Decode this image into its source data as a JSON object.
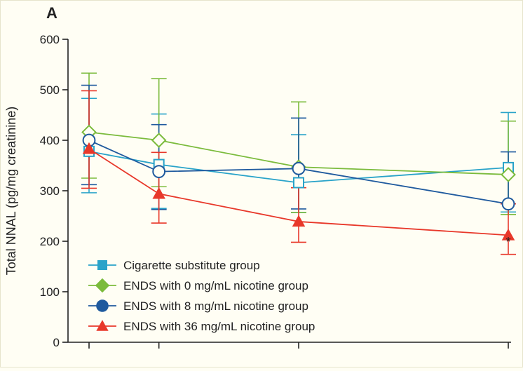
{
  "panel_label": "A",
  "chart_data": {
    "type": "line",
    "ylabel": "Total NNAL (pg/mg creatinine)",
    "xlabel": "",
    "ylim": [
      0,
      600
    ],
    "yticks": [
      0,
      100,
      200,
      300,
      400,
      500,
      600
    ],
    "x": [
      0,
      1,
      3,
      6
    ],
    "grid": false,
    "legend_position": "bottom-left",
    "annotations": [
      {
        "text": "*",
        "x": 6,
        "y": 190
      }
    ],
    "series": [
      {
        "name": "Cigarette substitute group",
        "color": "#29a3c9",
        "marker": "square-open",
        "values": [
          378,
          352,
          316,
          346
        ],
        "upper": [
          483,
          452,
          411,
          455
        ],
        "lower": [
          296,
          265,
          257,
          258
        ]
      },
      {
        "name": "ENDS with 0 mg/mL nicotine group",
        "color": "#7bbb3c",
        "marker": "diamond-open",
        "values": [
          416,
          400,
          347,
          332
        ],
        "upper": [
          533,
          522,
          476,
          438
        ],
        "lower": [
          325,
          308,
          257,
          253
        ]
      },
      {
        "name": "ENDS with 8 mg/mL nicotine group",
        "color": "#1f5a9e",
        "marker": "circle-open",
        "values": [
          400,
          338,
          344,
          274
        ],
        "upper": [
          509,
          431,
          444,
          377
        ],
        "lower": [
          312,
          263,
          264,
          274
        ]
      },
      {
        "name": "ENDS with 36 mg/mL nicotine group",
        "color": "#e8382a",
        "marker": "triangle-filled",
        "values": [
          383,
          294,
          239,
          212
        ],
        "upper": [
          498,
          376,
          306,
          274
        ],
        "lower": [
          305,
          236,
          198,
          174
        ]
      }
    ]
  }
}
